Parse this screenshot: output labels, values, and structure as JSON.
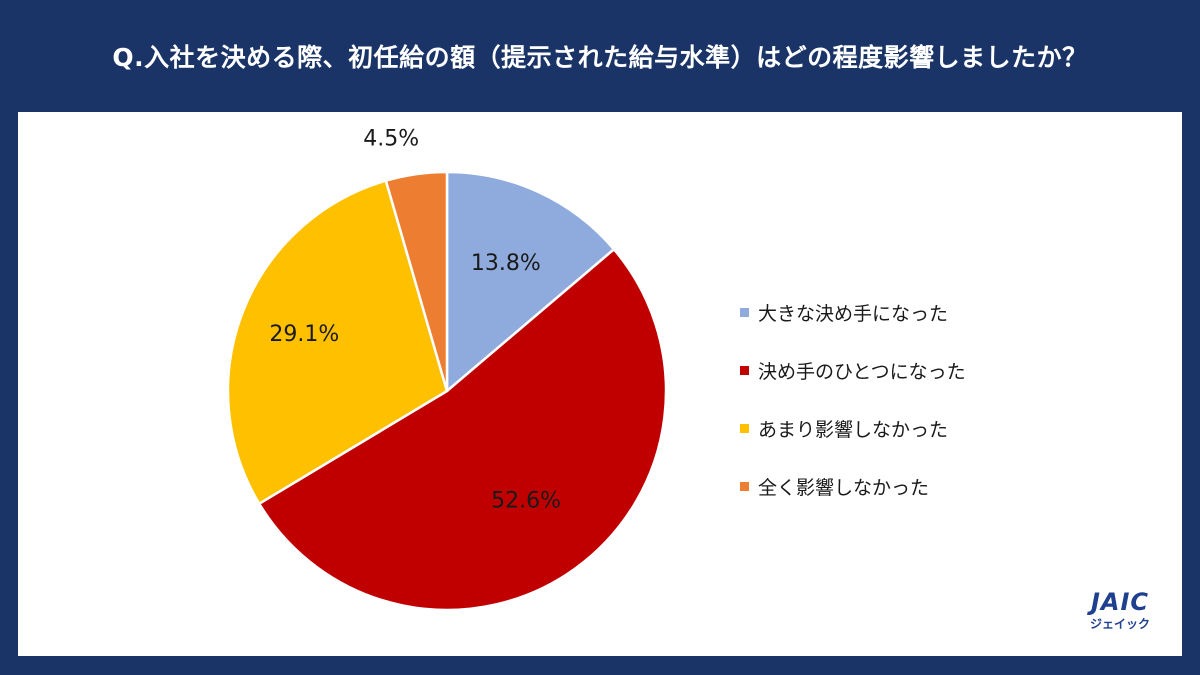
{
  "title": "Q.入社を決める際、初任給の額（提示された給与水準）はどの程度影響しましたか？",
  "chart_data": {
    "type": "pie",
    "categories": [
      "大きな決め手になった",
      "決め手のひとつになった",
      "あまり影響しなかった",
      "全く影響しなかった"
    ],
    "values": [
      13.8,
      52.6,
      29.1,
      4.5
    ],
    "labels": [
      "13.8%",
      "52.6%",
      "29.1%",
      "4.5%"
    ],
    "colors": [
      "#8faadc",
      "#c00000",
      "#ffc000",
      "#ed7d31"
    ],
    "start_angle_deg": 0,
    "direction": "clockwise",
    "legend_position": "right"
  },
  "legend": [
    {
      "label": "大きな決め手になった",
      "color": "#8faadc"
    },
    {
      "label": "決め手のひとつになった",
      "color": "#c00000"
    },
    {
      "label": "あまり影響しなかった",
      "color": "#ffc000"
    },
    {
      "label": "全く影響しなかった",
      "color": "#ed7d31"
    }
  ],
  "logo": {
    "main": "JAIC",
    "sub": "ジェイック"
  }
}
